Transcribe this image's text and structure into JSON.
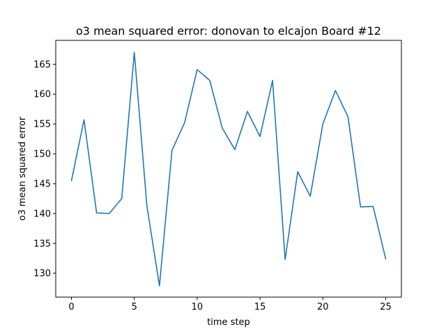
{
  "chart_data": {
    "type": "line",
    "title": "o3 mean squared error: donovan to elcajon Board #12",
    "xlabel": "time step",
    "ylabel": "o3 mean squared error",
    "xlim": [
      -1.25,
      26.25
    ],
    "ylim": [
      126.0,
      169.0
    ],
    "xticks": [
      0,
      5,
      10,
      15,
      20,
      25
    ],
    "yticks": [
      130,
      135,
      140,
      145,
      150,
      155,
      160,
      165
    ],
    "grid": false,
    "legend": "none",
    "series": [
      {
        "color": "#1f77b4",
        "x": [
          0,
          1,
          2,
          3,
          4,
          5,
          6,
          7,
          8,
          9,
          10,
          11,
          12,
          13,
          14,
          15,
          16,
          17,
          18,
          19,
          20,
          21,
          22,
          23,
          24,
          25
        ],
        "y": [
          145.5,
          155.7,
          140.1,
          140.0,
          142.5,
          167.0,
          141.3,
          127.9,
          150.6,
          155.2,
          164.1,
          162.3,
          154.3,
          150.7,
          157.1,
          152.9,
          162.3,
          132.3,
          147.0,
          142.9,
          155.0,
          160.6,
          156.2,
          141.1,
          141.2,
          132.4
        ]
      }
    ]
  }
}
